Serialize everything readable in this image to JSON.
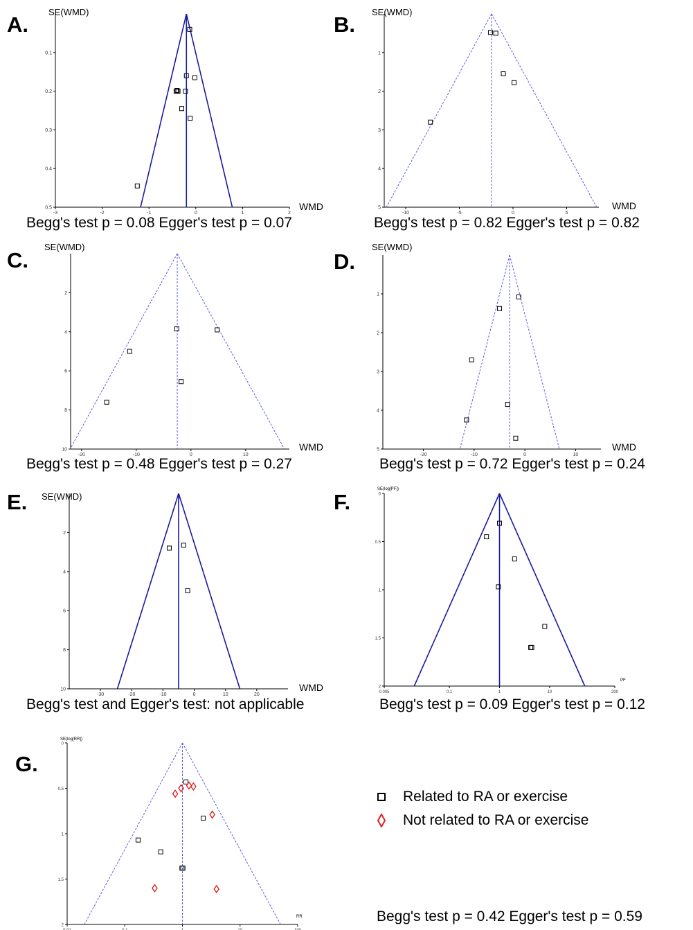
{
  "legend": {
    "related_label": "Related to RA or exercise",
    "not_related_label": "Not related to RA or exercise",
    "related_color": "#000000",
    "not_related_color": "#e02020"
  },
  "chart_data": [
    {
      "id": "A",
      "type": "scatter",
      "panel_label": "A.",
      "ylabel": "SE(WMD)",
      "xlabel": "WMD",
      "test_text": "Begg's test p = 0.08 Egger's test p = 0.07",
      "xlim": [
        -3,
        2
      ],
      "ylim": [
        0,
        0.5
      ],
      "y_inverted": true,
      "x_scale": "linear",
      "xticks": [
        -3,
        -2,
        -1,
        0,
        1,
        2
      ],
      "yticks": [
        0.1,
        0.2,
        0.3,
        0.4,
        0.5
      ],
      "pooled": -0.2,
      "funnel_style": "solid",
      "funnel_color": "#1a1aa0",
      "series": [
        {
          "marker": "square",
          "points": [
            {
              "x": -0.13,
              "y": 0.04
            },
            {
              "x": -0.2,
              "y": 0.16
            },
            {
              "x": -0.02,
              "y": 0.165
            },
            {
              "x": -0.4,
              "y": 0.198
            },
            {
              "x": -0.42,
              "y": 0.2
            },
            {
              "x": -0.38,
              "y": 0.2
            },
            {
              "x": -0.22,
              "y": 0.2
            },
            {
              "x": -0.3,
              "y": 0.245
            },
            {
              "x": -0.12,
              "y": 0.27
            },
            {
              "x": -1.25,
              "y": 0.445
            }
          ]
        }
      ]
    },
    {
      "id": "B",
      "type": "scatter",
      "panel_label": "B.",
      "ylabel": "SE(WMD)",
      "xlabel": "WMD",
      "test_text": "Begg's test p = 0.82 Egger's test p = 0.82",
      "xlim": [
        -12,
        8
      ],
      "ylim": [
        0,
        5
      ],
      "y_inverted": true,
      "x_scale": "linear",
      "xticks": [
        -10,
        -5,
        0,
        5
      ],
      "yticks": [
        1,
        2,
        3,
        4,
        5
      ],
      "pooled": -2.0,
      "funnel_style": "dashed",
      "funnel_color": "#5a5aee",
      "series": [
        {
          "marker": "square",
          "points": [
            {
              "x": -2.1,
              "y": 0.48
            },
            {
              "x": -1.6,
              "y": 0.5
            },
            {
              "x": -0.9,
              "y": 1.55
            },
            {
              "x": 0.1,
              "y": 1.78
            },
            {
              "x": -7.7,
              "y": 2.8
            }
          ]
        }
      ]
    },
    {
      "id": "C",
      "type": "scatter",
      "panel_label": "C.",
      "ylabel": "SE(WMD)",
      "xlabel": "WMD",
      "test_text": "Begg's test p = 0.48 Egger's test p = 0.27",
      "xlim": [
        -22,
        18
      ],
      "ylim": [
        0,
        10
      ],
      "y_inverted": true,
      "x_scale": "linear",
      "xticks": [
        -20,
        -10,
        0,
        10
      ],
      "yticks": [
        2,
        4,
        6,
        8,
        10
      ],
      "pooled": -2.5,
      "funnel_style": "dashed",
      "funnel_color": "#5a5aee",
      "series": [
        {
          "marker": "square",
          "points": [
            {
              "x": -2.6,
              "y": 3.85
            },
            {
              "x": 4.8,
              "y": 3.9
            },
            {
              "x": -11.2,
              "y": 5.0
            },
            {
              "x": -1.8,
              "y": 6.55
            },
            {
              "x": -15.4,
              "y": 7.6
            }
          ]
        }
      ]
    },
    {
      "id": "D",
      "type": "scatter",
      "panel_label": "D.",
      "ylabel": "SE(WMD)",
      "xlabel": "WMD",
      "test_text": "Begg's test p = 0.72 Egger's test p = 0.24",
      "xlim": [
        -28,
        15
      ],
      "ylim": [
        0,
        5
      ],
      "y_inverted": true,
      "x_scale": "linear",
      "xticks": [
        -20,
        -10,
        0,
        10
      ],
      "yticks": [
        1,
        2,
        3,
        4,
        5
      ],
      "pooled": -3.0,
      "funnel_style": "dashed",
      "funnel_color": "#5a5aee",
      "series": [
        {
          "marker": "square",
          "points": [
            {
              "x": -1.2,
              "y": 1.08
            },
            {
              "x": -5.0,
              "y": 1.38
            },
            {
              "x": -10.5,
              "y": 2.7
            },
            {
              "x": -3.4,
              "y": 3.85
            },
            {
              "x": -11.5,
              "y": 4.25
            },
            {
              "x": -1.8,
              "y": 4.72
            }
          ]
        }
      ]
    },
    {
      "id": "E",
      "type": "scatter",
      "panel_label": "E.",
      "ylabel": "SE(WMD)",
      "xlabel": "WMD",
      "test_text": "Begg's test and Egger's test: not applicable",
      "xlim": [
        -40,
        30
      ],
      "ylim": [
        0,
        10
      ],
      "y_inverted": true,
      "x_scale": "linear",
      "xticks": [
        -30,
        -20,
        -10,
        0,
        10,
        20
      ],
      "yticks": [
        2,
        4,
        6,
        8,
        10
      ],
      "pooled": -5.0,
      "funnel_style": "solid",
      "funnel_color": "#1a1aa0",
      "series": [
        {
          "marker": "square",
          "points": [
            {
              "x": -3.4,
              "y": 2.65
            },
            {
              "x": -8.0,
              "y": 2.8
            },
            {
              "x": -2.1,
              "y": 4.98
            }
          ]
        }
      ]
    },
    {
      "id": "F",
      "type": "scatter",
      "panel_label": "F.",
      "ylabel": "SE(log[PF])",
      "xlabel": "PF",
      "test_text": "Begg's test p = 0.09 Egger's test p = 0.12",
      "xlim": [
        0.005,
        200
      ],
      "ylim": [
        0,
        2
      ],
      "y_inverted": true,
      "x_scale": "log",
      "xticks": [
        0.005,
        0.1,
        1,
        10,
        200
      ],
      "yticks": [
        0,
        0.5,
        1,
        1.5,
        2
      ],
      "pooled": 1.0,
      "funnel_style": "solid",
      "funnel_color": "#1a1aa0",
      "series": [
        {
          "marker": "square",
          "points": [
            {
              "x": 1.0,
              "y": 0.31
            },
            {
              "x": 0.55,
              "y": 0.45
            },
            {
              "x": 2.0,
              "y": 0.68
            },
            {
              "x": 0.95,
              "y": 0.97
            },
            {
              "x": 8.0,
              "y": 1.38
            },
            {
              "x": 4.2,
              "y": 1.6
            },
            {
              "x": 4.4,
              "y": 1.6
            }
          ]
        }
      ]
    },
    {
      "id": "G",
      "type": "scatter",
      "panel_label": "G.",
      "ylabel": "SE(log[RR])",
      "xlabel": "RR",
      "test_text": "Begg's test p = 0.42 Egger's test p = 0.59",
      "xlim": [
        0.01,
        100
      ],
      "ylim": [
        0,
        2
      ],
      "y_inverted": true,
      "x_scale": "log",
      "xticks": [
        0.01,
        0.1,
        1,
        10,
        100
      ],
      "yticks": [
        0,
        0.5,
        1,
        1.5,
        2
      ],
      "pooled": 1.0,
      "funnel_style": "dashed",
      "funnel_color": "#5a5aee",
      "series": [
        {
          "name": "Related to RA or exercise",
          "marker": "square",
          "points": [
            {
              "x": 1.15,
              "y": 0.43
            },
            {
              "x": 2.3,
              "y": 0.83
            },
            {
              "x": 0.17,
              "y": 1.07
            },
            {
              "x": 0.42,
              "y": 1.2
            },
            {
              "x": 0.98,
              "y": 1.38
            },
            {
              "x": 1.02,
              "y": 1.38
            }
          ]
        },
        {
          "name": "Not related to RA or exercise",
          "marker": "diamond",
          "points": [
            {
              "x": 1.3,
              "y": 0.47
            },
            {
              "x": 1.55,
              "y": 0.48
            },
            {
              "x": 0.95,
              "y": 0.5
            },
            {
              "x": 0.75,
              "y": 0.56
            },
            {
              "x": 3.3,
              "y": 0.79
            },
            {
              "x": 0.33,
              "y": 1.6
            },
            {
              "x": 3.9,
              "y": 1.61
            }
          ]
        }
      ]
    }
  ]
}
